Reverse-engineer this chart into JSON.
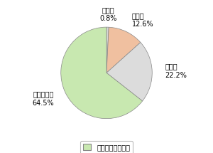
{
  "labels_order": [
    "無回答",
    "増えた",
    "減った",
    "変わらない"
  ],
  "values_order": [
    0.8,
    12.6,
    22.2,
    64.5
  ],
  "colors_order": [
    "#d8d8d8",
    "#f0c0a0",
    "#dcdcdc",
    "#c8e8b0"
  ],
  "legend_label": "：冷凍食品購入者",
  "startangle": 90,
  "label_fontsize": 7,
  "legend_fontsize": 7,
  "edge_color": "#888888",
  "edge_width": 0.5,
  "bg_color": "#ffffff"
}
